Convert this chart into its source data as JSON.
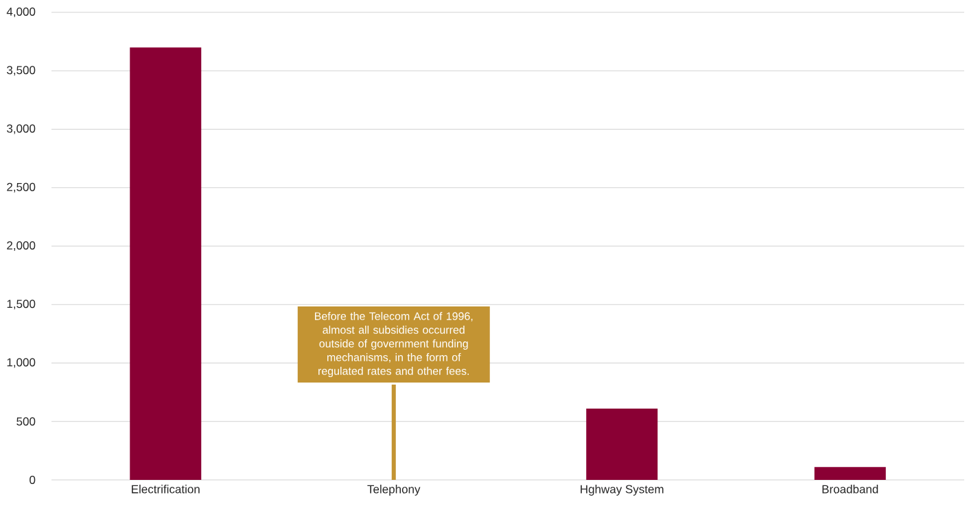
{
  "chart_data": {
    "type": "bar",
    "categories": [
      "Electrification",
      "Telephony",
      "Hghway System",
      "Broadband"
    ],
    "values": [
      3700,
      null,
      610,
      110
    ],
    "color": "#8a0034",
    "ylim": [
      0,
      4000
    ],
    "yticks": [
      0,
      500,
      {
        "value": 1000,
        "label": "1,000"
      },
      {
        "value": 1500,
        "label": "1,500"
      },
      {
        "value": 2000,
        "label": "2,000"
      },
      {
        "value": 2500,
        "label": "2,500"
      },
      {
        "value": 3000,
        "label": "3,000"
      },
      {
        "value": 3500,
        "label": "3,500"
      },
      {
        "value": 4000,
        "label": "4,000"
      }
    ],
    "grid": "y",
    "annotations": [
      "Before the Telecom Act of 1996, almost all subsidies occurred outside of government funding mechanisms, in the form of regulated rates and other fees."
    ]
  }
}
